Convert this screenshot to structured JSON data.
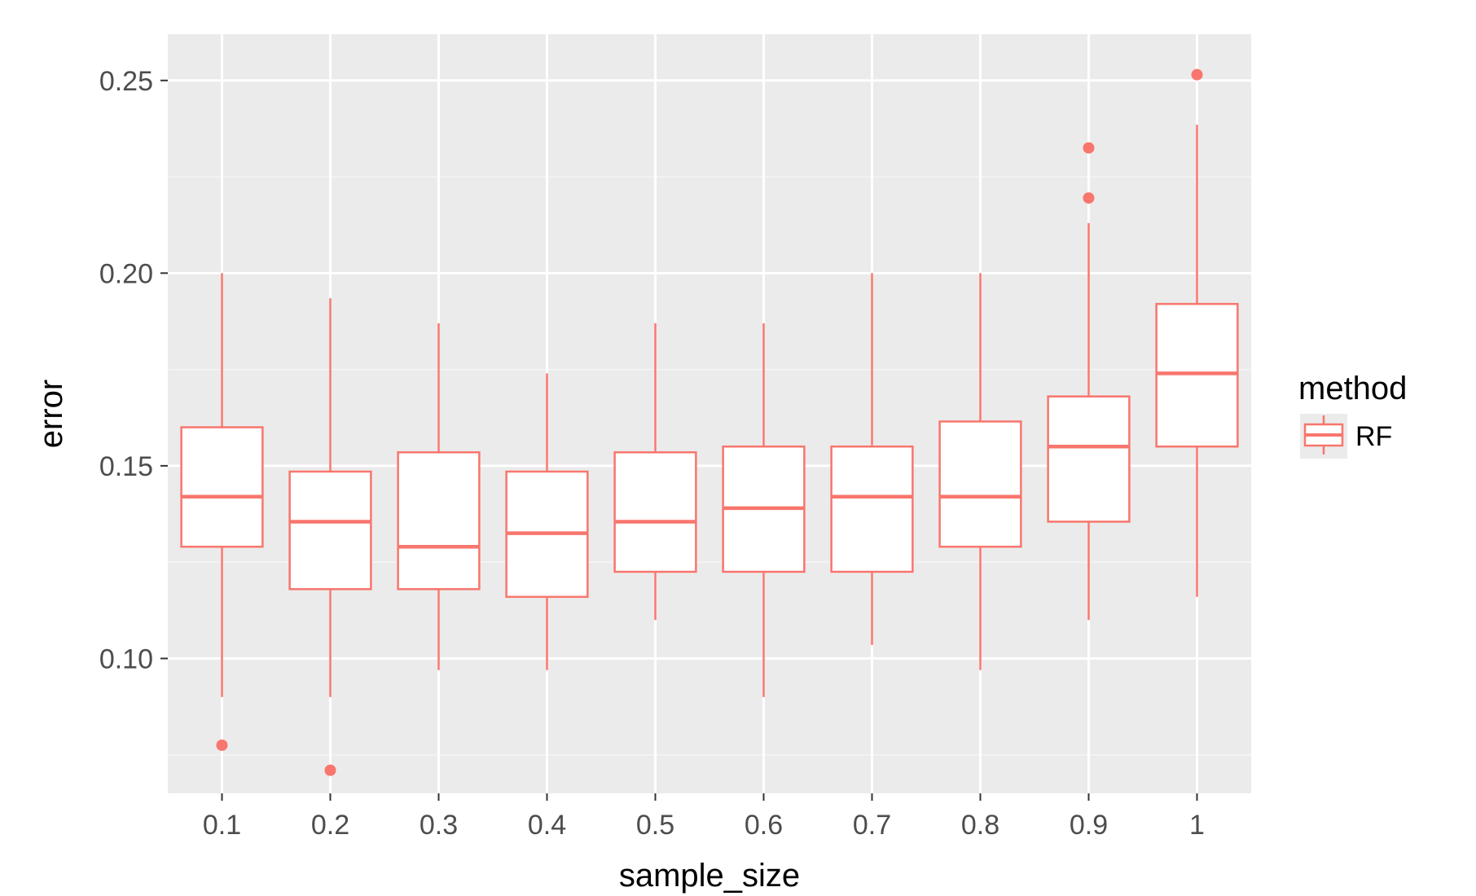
{
  "colors": {
    "panel_background": "#ebebeb",
    "grid_major": "#ffffff",
    "grid_minor": "#f5f5f5",
    "box_stroke": "#f8766d",
    "box_fill": "#ffffff",
    "tick_color": "#333333",
    "legend_key_background": "#ebebeb"
  },
  "chart_data": {
    "type": "boxplot",
    "xlabel": "sample_size",
    "ylabel": "error",
    "ylim": [
      0.065,
      0.262
    ],
    "y_ticks": [
      0.1,
      0.15,
      0.2,
      0.25
    ],
    "y_tick_labels": [
      "0.10",
      "0.15",
      "0.20",
      "0.25"
    ],
    "y_minor_ticks": [
      0.075,
      0.125,
      0.175,
      0.225
    ],
    "grid": true,
    "legend": {
      "title": "method",
      "placement": "right",
      "entries": [
        "RF"
      ]
    },
    "categories": [
      "0.1",
      "0.2",
      "0.3",
      "0.4",
      "0.5",
      "0.6",
      "0.7",
      "0.8",
      "0.9",
      "1"
    ],
    "series": [
      {
        "name": "RF",
        "boxes": [
          {
            "category": "0.1",
            "whisker_low": 0.09,
            "q1": 0.129,
            "median": 0.142,
            "q3": 0.16,
            "whisker_high": 0.2,
            "outliers": [
              0.0775
            ]
          },
          {
            "category": "0.2",
            "whisker_low": 0.09,
            "q1": 0.118,
            "median": 0.1355,
            "q3": 0.1485,
            "whisker_high": 0.1935,
            "outliers": [
              0.071
            ]
          },
          {
            "category": "0.3",
            "whisker_low": 0.097,
            "q1": 0.118,
            "median": 0.129,
            "q3": 0.1535,
            "whisker_high": 0.187,
            "outliers": []
          },
          {
            "category": "0.4",
            "whisker_low": 0.097,
            "q1": 0.116,
            "median": 0.1325,
            "q3": 0.1485,
            "whisker_high": 0.174,
            "outliers": []
          },
          {
            "category": "0.5",
            "whisker_low": 0.11,
            "q1": 0.1225,
            "median": 0.1355,
            "q3": 0.1535,
            "whisker_high": 0.187,
            "outliers": []
          },
          {
            "category": "0.6",
            "whisker_low": 0.09,
            "q1": 0.1225,
            "median": 0.139,
            "q3": 0.155,
            "whisker_high": 0.187,
            "outliers": []
          },
          {
            "category": "0.7",
            "whisker_low": 0.1035,
            "q1": 0.1225,
            "median": 0.142,
            "q3": 0.155,
            "whisker_high": 0.2,
            "outliers": []
          },
          {
            "category": "0.8",
            "whisker_low": 0.097,
            "q1": 0.129,
            "median": 0.142,
            "q3": 0.1615,
            "whisker_high": 0.2,
            "outliers": []
          },
          {
            "category": "0.9",
            "whisker_low": 0.11,
            "q1": 0.1355,
            "median": 0.155,
            "q3": 0.168,
            "whisker_high": 0.213,
            "outliers": [
              0.2195,
              0.2325
            ]
          },
          {
            "category": "1",
            "whisker_low": 0.116,
            "q1": 0.155,
            "median": 0.174,
            "q3": 0.192,
            "whisker_high": 0.2385,
            "outliers": [
              0.2515
            ]
          }
        ]
      }
    ]
  }
}
